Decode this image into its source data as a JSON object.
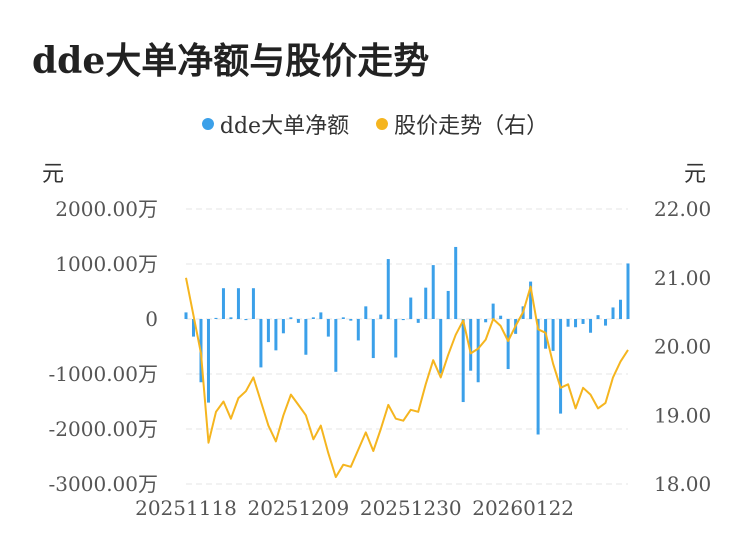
{
  "title": "dde大单净额与股价走势",
  "legend": {
    "bar_label": "dde大单净额",
    "line_label": "股价走势（右）"
  },
  "units": {
    "left": "元",
    "right": "元"
  },
  "colors": {
    "bar": "#3ba0e9",
    "line": "#f5b51f",
    "grid": "#e6e6e6",
    "axis_text": "#555555"
  },
  "chart_data": {
    "type": "bar",
    "title": "dde大单净额与股价走势",
    "left_axis": {
      "ticks": [
        2000,
        1000,
        0,
        -1000,
        -2000,
        -3000
      ],
      "tick_labels": [
        "2000.00万",
        "1000.00万",
        "0",
        "-1000.00万",
        "-2000.00万",
        "-3000.00万"
      ],
      "ylim": [
        -3000,
        2000
      ]
    },
    "right_axis": {
      "ticks": [
        22,
        21,
        20,
        19,
        18
      ],
      "tick_labels": [
        "22.00",
        "21.00",
        "20.00",
        "19.00",
        "18.00"
      ],
      "ylim": [
        18,
        22
      ]
    },
    "x_tick_labels": [
      {
        "index": 0,
        "label": "20251118"
      },
      {
        "index": 15,
        "label": "20251209"
      },
      {
        "index": 30,
        "label": "20251230"
      },
      {
        "index": 45,
        "label": "20260122"
      }
    ],
    "series": [
      {
        "name": "dde大单净额",
        "type": "bar",
        "axis": "left",
        "values": [
          120,
          -320,
          -1150,
          -1520,
          20,
          560,
          30,
          560,
          -20,
          560,
          -880,
          -420,
          -570,
          -260,
          30,
          -70,
          -650,
          30,
          120,
          -320,
          -960,
          30,
          -30,
          -390,
          230,
          -710,
          80,
          1090,
          -700,
          -20,
          390,
          -70,
          570,
          980,
          -990,
          510,
          1310,
          -1510,
          -940,
          -1150,
          -60,
          280,
          60,
          -910,
          -270,
          230,
          680,
          -2100,
          -540,
          -580,
          -1720,
          -140,
          -150,
          -90,
          -250,
          70,
          -120,
          210,
          350,
          1010
        ]
      },
      {
        "name": "股价走势（右）",
        "type": "line",
        "axis": "right",
        "values": [
          21.0,
          20.45,
          19.9,
          18.6,
          19.05,
          19.2,
          18.95,
          19.25,
          19.35,
          19.55,
          19.2,
          18.85,
          18.62,
          19.0,
          19.3,
          19.15,
          19.0,
          18.65,
          18.85,
          18.45,
          18.1,
          18.28,
          18.25,
          18.5,
          18.75,
          18.48,
          18.8,
          19.15,
          18.95,
          18.92,
          19.08,
          19.05,
          19.45,
          19.8,
          19.55,
          19.88,
          20.17,
          20.38,
          19.9,
          19.97,
          20.1,
          20.4,
          20.3,
          20.08,
          20.3,
          20.5,
          20.87,
          20.25,
          20.2,
          19.75,
          19.4,
          19.45,
          19.1,
          19.4,
          19.3,
          19.1,
          19.18,
          19.55,
          19.78,
          19.95
        ]
      }
    ]
  }
}
